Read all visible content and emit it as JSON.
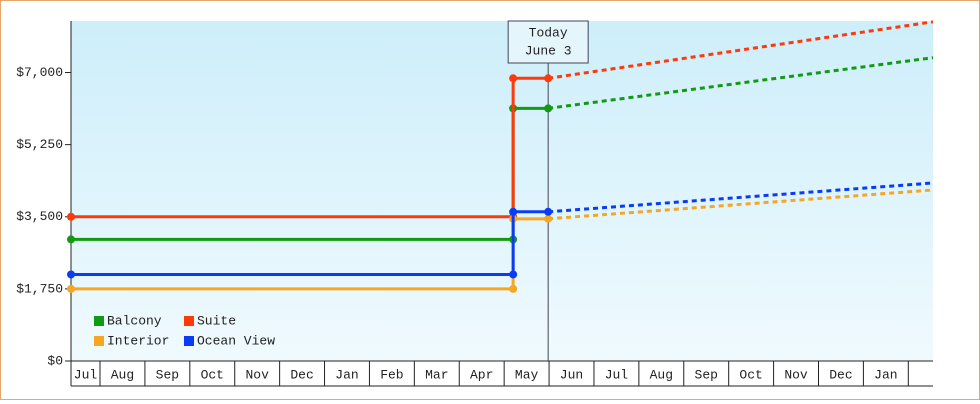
{
  "chart_data": {
    "type": "line",
    "x": [
      0.354,
      10.2,
      10.2,
      10.98,
      19.55
    ],
    "series": [
      {
        "name": "Balcony",
        "color": "#139a13",
        "values": [
          2950,
          2950,
          6130,
          6130,
          7360
        ]
      },
      {
        "name": "Suite",
        "color": "#ff3a0a",
        "values": [
          3500,
          3500,
          6860,
          6860,
          8230
        ]
      },
      {
        "name": "Interior",
        "color": "#f5a623",
        "values": [
          1750,
          1750,
          3450,
          3450,
          4150
        ]
      },
      {
        "name": "Ocean View",
        "color": "#0a3cf5",
        "values": [
          2100,
          2100,
          3620,
          3620,
          4320
        ]
      }
    ],
    "xlim": [
      0.354,
      19.55
    ],
    "xticks": [
      {
        "value": 0,
        "label": "Jul"
      },
      {
        "value": 1,
        "label": "Aug"
      },
      {
        "value": 2,
        "label": "Sep"
      },
      {
        "value": 3,
        "label": "Oct"
      },
      {
        "value": 4,
        "label": "Nov"
      },
      {
        "value": 5,
        "label": "Dec"
      },
      {
        "value": 6,
        "label": "Jan"
      },
      {
        "value": 7,
        "label": "Feb"
      },
      {
        "value": 8,
        "label": "Mar"
      },
      {
        "value": 9,
        "label": "Apr"
      },
      {
        "value": 10,
        "label": "May"
      },
      {
        "value": 11,
        "label": "Jun"
      },
      {
        "value": 12,
        "label": "Jul"
      },
      {
        "value": 13,
        "label": "Aug"
      },
      {
        "value": 14,
        "label": "Sep"
      },
      {
        "value": 15,
        "label": "Oct"
      },
      {
        "value": 16,
        "label": "Nov"
      },
      {
        "value": 17,
        "label": "Dec"
      },
      {
        "value": 18,
        "label": "Jan"
      }
    ],
    "ylim": [
      0,
      8250
    ],
    "yticks": [
      {
        "value": 0,
        "label": "$0"
      },
      {
        "value": 1750,
        "label": "$1,750"
      },
      {
        "value": 3500,
        "label": "$3,500"
      },
      {
        "value": 5250,
        "label": "$5,250"
      },
      {
        "value": 7000,
        "label": "$7,000"
      }
    ],
    "annotation": {
      "text": [
        "Today",
        "June 3"
      ],
      "x": 10.98
    },
    "legend": "lower-left"
  }
}
